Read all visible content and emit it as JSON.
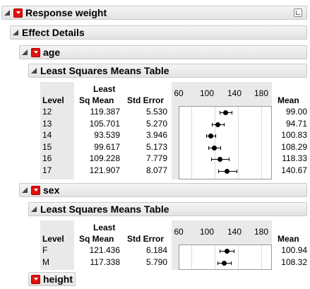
{
  "report": {
    "title": "Response weight",
    "effect_details": "Effect Details",
    "sections": [
      {
        "name": "age",
        "table_title": "Least Squares Means Table",
        "headers": {
          "level": "Level",
          "lsm_line1": "Least",
          "lsm_line2": "Sq Mean",
          "std_error": "Std Error",
          "mean": "Mean"
        },
        "axis_ticks": [
          "60",
          "100",
          "140",
          "180"
        ],
        "rows": [
          {
            "level": "12",
            "lsm": "119.387",
            "std_error": "5.530",
            "mean": "99.00"
          },
          {
            "level": "13",
            "lsm": "105.701",
            "std_error": "5.270",
            "mean": "94.71"
          },
          {
            "level": "14",
            "lsm": "93.539",
            "std_error": "3.946",
            "mean": "100.83"
          },
          {
            "level": "15",
            "lsm": "99.617",
            "std_error": "5.173",
            "mean": "108.29"
          },
          {
            "level": "16",
            "lsm": "109.228",
            "std_error": "7.779",
            "mean": "118.33"
          },
          {
            "level": "17",
            "lsm": "121.907",
            "std_error": "8.077",
            "mean": "140.67"
          }
        ]
      },
      {
        "name": "sex",
        "table_title": "Least Squares Means Table",
        "headers": {
          "level": "Level",
          "lsm_line1": "Least",
          "lsm_line2": "Sq Mean",
          "std_error": "Std Error",
          "mean": "Mean"
        },
        "axis_ticks": [
          "60",
          "100",
          "140",
          "180"
        ],
        "rows": [
          {
            "level": "F",
            "lsm": "121.436",
            "std_error": "6.184",
            "mean": "100.94"
          },
          {
            "level": "M",
            "lsm": "117.338",
            "std_error": "5.790",
            "mean": "108.32"
          }
        ]
      },
      {
        "name": "height"
      }
    ]
  },
  "chart_data": [
    {
      "type": "scatter",
      "title": "",
      "x_ticks": [
        60,
        100,
        140,
        180
      ],
      "xlim": [
        40,
        200
      ],
      "categories": [
        "12",
        "13",
        "14",
        "15",
        "16",
        "17"
      ],
      "values": [
        119.387,
        105.701,
        93.539,
        99.617,
        109.228,
        121.907
      ],
      "std_error": [
        5.53,
        5.27,
        3.946,
        5.173,
        7.779,
        8.077
      ],
      "grid": true
    },
    {
      "type": "scatter",
      "title": "",
      "x_ticks": [
        60,
        100,
        140,
        180
      ],
      "xlim": [
        40,
        200
      ],
      "categories": [
        "F",
        "M"
      ],
      "values": [
        121.436,
        117.338
      ],
      "std_error": [
        6.184,
        5.79
      ],
      "grid": true
    }
  ],
  "colors": {
    "hotspot": "#e01010",
    "header_bg": "#e8e8e8",
    "level_bg": "#e9e9e9"
  }
}
